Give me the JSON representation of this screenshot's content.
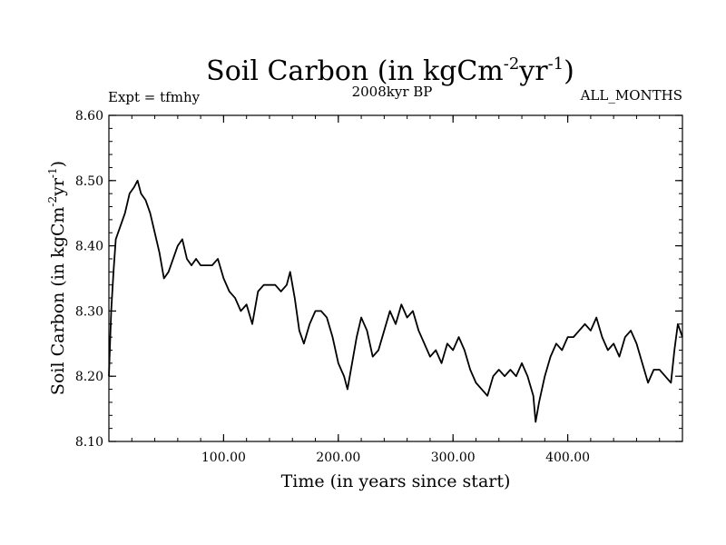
{
  "chart_data": {
    "type": "line",
    "title": "Soil Carbon (in kgCm",
    "title_sup1": "-2",
    "title_mid": "yr",
    "title_sup2": "-1",
    "title_end": ")",
    "subtitle": "2008kyr BP",
    "left_note": "Expt = tfmhy",
    "right_note": "ALL_MONTHS",
    "xlabel": "Time (in years since start)",
    "ylabel": "Soil Carbon (in kgCm",
    "ylabel_sup1": "-2",
    "ylabel_mid": "yr",
    "ylabel_sup2": "-1",
    "ylabel_end": ")",
    "xlim": [
      0,
      500
    ],
    "ylim": [
      8.1,
      8.6
    ],
    "x_ticks": [
      100,
      200,
      300,
      400
    ],
    "x_tick_labels": [
      "100.00",
      "200.00",
      "300.00",
      "400.00"
    ],
    "y_ticks": [
      8.1,
      8.2,
      8.3,
      8.4,
      8.5,
      8.6
    ],
    "y_tick_labels": [
      "8.10",
      "8.20",
      "8.30",
      "8.40",
      "8.50",
      "8.60"
    ],
    "grid": false,
    "line_color": "#000000",
    "series": [
      {
        "x": [
          0,
          2,
          4,
          6,
          8,
          10,
          14,
          18,
          22,
          25,
          28,
          32,
          36,
          40,
          44,
          48,
          52,
          56,
          60,
          64,
          68,
          72,
          76,
          80,
          85,
          90,
          95,
          100,
          105,
          110,
          115,
          120,
          125,
          130,
          135,
          140,
          145,
          150,
          155,
          158,
          162,
          166,
          170,
          175,
          180,
          185,
          190,
          195,
          200,
          205,
          208,
          212,
          216,
          220,
          225,
          230,
          235,
          240,
          245,
          250,
          255,
          260,
          265,
          270,
          275,
          280,
          285,
          290,
          295,
          300,
          305,
          310,
          315,
          320,
          325,
          330,
          335,
          340,
          345,
          350,
          355,
          360,
          365,
          370,
          372,
          375,
          380,
          385,
          390,
          395,
          400,
          405,
          410,
          415,
          420,
          425,
          430,
          435,
          440,
          445,
          450,
          455,
          460,
          465,
          470,
          475,
          480,
          485,
          490,
          493,
          496,
          500
        ],
        "y": [
          8.2,
          8.3,
          8.36,
          8.41,
          8.42,
          8.43,
          8.45,
          8.48,
          8.49,
          8.5,
          8.48,
          8.47,
          8.45,
          8.42,
          8.39,
          8.35,
          8.36,
          8.38,
          8.4,
          8.41,
          8.38,
          8.37,
          8.38,
          8.37,
          8.37,
          8.37,
          8.38,
          8.35,
          8.33,
          8.32,
          8.3,
          8.31,
          8.28,
          8.33,
          8.34,
          8.34,
          8.34,
          8.33,
          8.34,
          8.36,
          8.32,
          8.27,
          8.25,
          8.28,
          8.3,
          8.3,
          8.29,
          8.26,
          8.22,
          8.2,
          8.18,
          8.22,
          8.26,
          8.29,
          8.27,
          8.23,
          8.24,
          8.27,
          8.3,
          8.28,
          8.31,
          8.29,
          8.3,
          8.27,
          8.25,
          8.23,
          8.24,
          8.22,
          8.25,
          8.24,
          8.26,
          8.24,
          8.21,
          8.19,
          8.18,
          8.17,
          8.2,
          8.21,
          8.2,
          8.21,
          8.2,
          8.22,
          8.2,
          8.17,
          8.13,
          8.16,
          8.2,
          8.23,
          8.25,
          8.24,
          8.26,
          8.26,
          8.27,
          8.28,
          8.27,
          8.29,
          8.26,
          8.24,
          8.25,
          8.23,
          8.26,
          8.27,
          8.25,
          8.22,
          8.19,
          8.21,
          8.21,
          8.2,
          8.19,
          8.24,
          8.28,
          8.26
        ]
      }
    ]
  }
}
